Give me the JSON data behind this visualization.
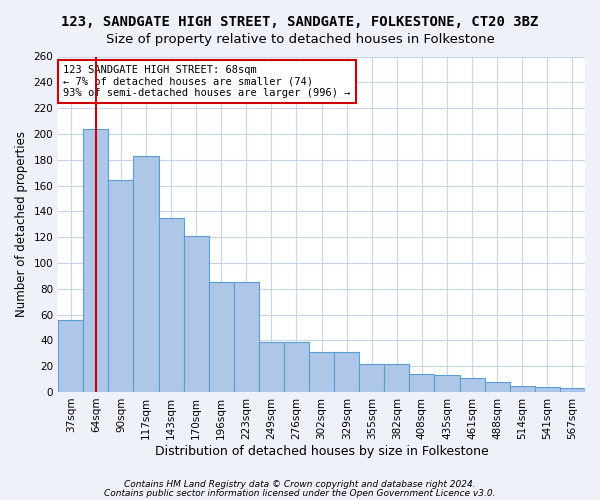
{
  "title1": "123, SANDGATE HIGH STREET, SANDGATE, FOLKESTONE, CT20 3BZ",
  "title2": "Size of property relative to detached houses in Folkestone",
  "xlabel": "Distribution of detached houses by size in Folkestone",
  "ylabel": "Number of detached properties",
  "categories": [
    "37sqm",
    "64sqm",
    "90sqm",
    "117sqm",
    "143sqm",
    "170sqm",
    "196sqm",
    "223sqm",
    "249sqm",
    "276sqm",
    "302sqm",
    "329sqm",
    "355sqm",
    "382sqm",
    "408sqm",
    "435sqm",
    "461sqm",
    "488sqm",
    "514sqm",
    "541sqm",
    "567sqm"
  ],
  "bar_heights": [
    56,
    204,
    164,
    183,
    135,
    121,
    85,
    85,
    39,
    39,
    31,
    31,
    22,
    22,
    14,
    13,
    11,
    8,
    5,
    4,
    3
  ],
  "bar_color": "#aec6e8",
  "bar_edge_color": "#5a9fd4",
  "reference_line_x": 1,
  "reference_line_color": "#cc0000",
  "annotation_line1": "123 SANDGATE HIGH STREET: 68sqm",
  "annotation_line2": "← 7% of detached houses are smaller (74)",
  "annotation_line3": "93% of semi-detached houses are larger (996) →",
  "annotation_box_color": "#ffffff",
  "annotation_box_edge": "#cc0000",
  "ylim": [
    0,
    260
  ],
  "yticks": [
    0,
    20,
    40,
    60,
    80,
    100,
    120,
    140,
    160,
    180,
    200,
    220,
    240,
    260
  ],
  "footer1": "Contains HM Land Registry data © Crown copyright and database right 2024.",
  "footer2": "Contains public sector information licensed under the Open Government Licence v3.0.",
  "bg_color": "#eef2f8",
  "plot_bg_color": "#ffffff",
  "grid_color": "#c8d4e8",
  "title_fontsize": 10,
  "subtitle_fontsize": 9.5,
  "tick_fontsize": 7.5,
  "ylabel_fontsize": 8.5,
  "xlabel_fontsize": 9
}
